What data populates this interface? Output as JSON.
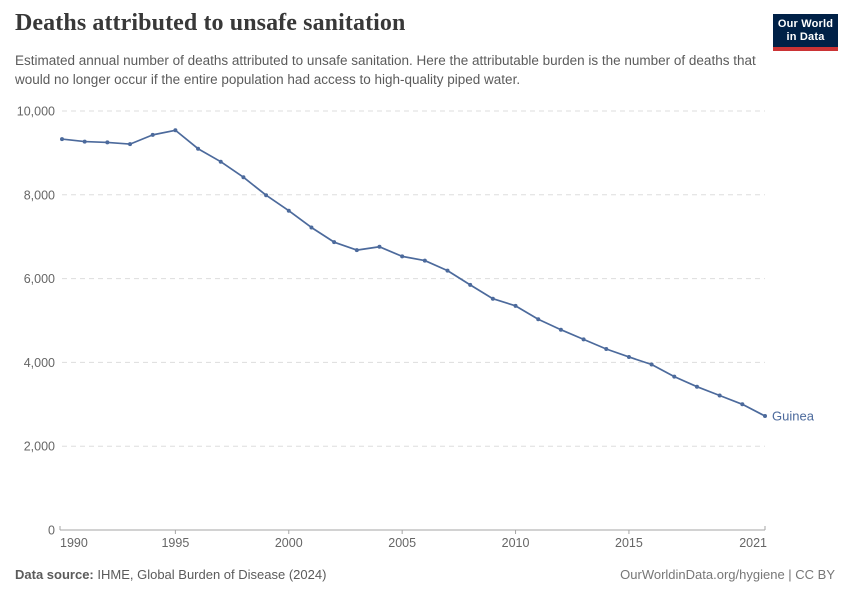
{
  "header": {
    "title": "Deaths attributed to unsafe sanitation",
    "subtitle": "Estimated annual number of deaths attributed to unsafe sanitation. Here the attributable burden is the number of deaths that would no longer occur if the entire population had access to high-quality piped water.",
    "logo_line1": "Our World",
    "logo_line2": "in Data"
  },
  "colors": {
    "series_blue": "#4c6a9c",
    "logo_navy": "#002147",
    "logo_red": "#cb3335",
    "grid": "#dddddd",
    "axis": "#a5a5a5",
    "tick_text": "#666666",
    "title_text": "#383838",
    "body_text": "#5b5b5b"
  },
  "chart_data": {
    "type": "line",
    "title": "Deaths attributed to unsafe sanitation",
    "entity_label": "Guinea",
    "x": [
      1990,
      1991,
      1992,
      1993,
      1994,
      1995,
      1996,
      1997,
      1998,
      1999,
      2000,
      2001,
      2002,
      2003,
      2004,
      2005,
      2006,
      2007,
      2008,
      2009,
      2010,
      2011,
      2012,
      2013,
      2014,
      2015,
      2016,
      2017,
      2018,
      2019,
      2020,
      2021
    ],
    "series": [
      {
        "name": "Guinea",
        "color": "#4c6a9c",
        "values": [
          9330,
          9270,
          9250,
          9210,
          9430,
          9540,
          9100,
          8790,
          8420,
          7990,
          7620,
          7220,
          6870,
          6680,
          6760,
          6530,
          6430,
          6190,
          5850,
          5520,
          5350,
          5030,
          4780,
          4550,
          4320,
          4130,
          3950,
          3660,
          3420,
          3210,
          3000,
          2720
        ]
      }
    ],
    "ylim": [
      0,
      10000
    ],
    "y_ticks": [
      0,
      2000,
      4000,
      6000,
      8000,
      10000
    ],
    "y_tick_labels": [
      "0",
      "2,000",
      "4,000",
      "6,000",
      "8,000",
      "10,000"
    ],
    "x_ticks": [
      1990,
      1995,
      2000,
      2005,
      2010,
      2015,
      2021
    ],
    "x_tick_labels": [
      "1990",
      "1995",
      "2000",
      "2005",
      "2010",
      "2015",
      "2021"
    ],
    "grid": "horizontal-dashed",
    "legend_position": "end-of-line-label"
  },
  "footer": {
    "source_label": "Data source:",
    "source_value": " IHME, Global Burden of Disease (2024)",
    "right_text": "OurWorldinData.org/hygiene | CC BY"
  }
}
